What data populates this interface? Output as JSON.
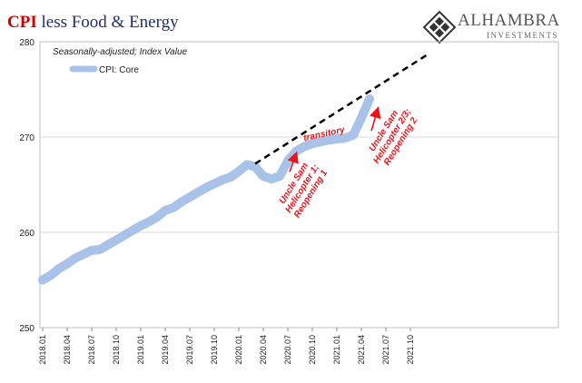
{
  "title": {
    "main": "CPI",
    "rest": " less Food & Energy"
  },
  "subtitle": "Seasonally-adjusted; Index Value",
  "logo": {
    "name": "ALHAMBRA",
    "tagline": "INVESTMENTS"
  },
  "colors": {
    "series": "#a9c3e8",
    "trend": "#000000",
    "annotation": "#e8141b",
    "title_red": "#cc0000",
    "title_navy": "#1f2f6b"
  },
  "chart_data": {
    "type": "line",
    "title": "CPI less Food & Energy",
    "xlabel": "",
    "ylabel": "",
    "ylim": [
      250,
      280
    ],
    "yticks": [
      250,
      260,
      270,
      280
    ],
    "xtick_labels": [
      "2018.01",
      "2018.04",
      "2018.07",
      "2018.10",
      "2019.01",
      "2019.04",
      "2019.07",
      "2019.10",
      "2020.01",
      "2020.04",
      "2020.07",
      "2020.10",
      "2021.01",
      "2021.04",
      "2021.07",
      "2021.10"
    ],
    "grid": true,
    "legend": "top-left",
    "series": [
      {
        "name": "CPI: Core",
        "x": [
          "2018.01",
          "2018.02",
          "2018.03",
          "2018.04",
          "2018.05",
          "2018.06",
          "2018.07",
          "2018.08",
          "2018.09",
          "2018.10",
          "2018.11",
          "2018.12",
          "2019.01",
          "2019.02",
          "2019.03",
          "2019.04",
          "2019.05",
          "2019.06",
          "2019.07",
          "2019.08",
          "2019.09",
          "2019.10",
          "2019.11",
          "2019.12",
          "2020.01",
          "2020.02",
          "2020.03",
          "2020.04",
          "2020.05",
          "2020.06",
          "2020.07",
          "2020.08",
          "2020.09",
          "2020.10",
          "2020.11",
          "2020.12",
          "2021.01",
          "2021.02",
          "2021.03",
          "2021.04",
          "2021.05"
        ],
        "values": [
          255.0,
          255.5,
          256.2,
          256.7,
          257.3,
          257.7,
          258.1,
          258.2,
          258.7,
          259.2,
          259.7,
          260.2,
          260.7,
          261.1,
          261.6,
          262.3,
          262.6,
          263.2,
          263.7,
          264.2,
          264.7,
          265.1,
          265.5,
          265.8,
          266.4,
          267.1,
          266.9,
          265.9,
          265.6,
          265.9,
          267.5,
          268.5,
          269.0,
          269.3,
          269.5,
          269.7,
          269.8,
          269.9,
          270.2,
          272.0,
          274.0
        ]
      }
    ],
    "trend_line": {
      "style": "dashed",
      "x": [
        "2020.03",
        "2021.12"
      ],
      "values": [
        267.2,
        278.6
      ]
    },
    "annotations": [
      {
        "text": "transitory",
        "x": "2020.09",
        "y": 269.6
      },
      {
        "text": "Uncle Sam\nHelicopter 1;\nReopening 1",
        "x": "2020.08",
        "y": 265.0,
        "arrow_from": [
          "2020.07",
          "267.3"
        ],
        "arrow_to": [
          "2020.08",
          "268.8"
        ]
      },
      {
        "text": "Uncle Sam\nHelicopter 2/3;\nReopening 2",
        "x": "2021.07",
        "y": 270.5,
        "arrow_from": [
          "2021.05",
          "271.6"
        ],
        "arrow_to": [
          "2021.06",
          "273.5"
        ]
      }
    ]
  }
}
